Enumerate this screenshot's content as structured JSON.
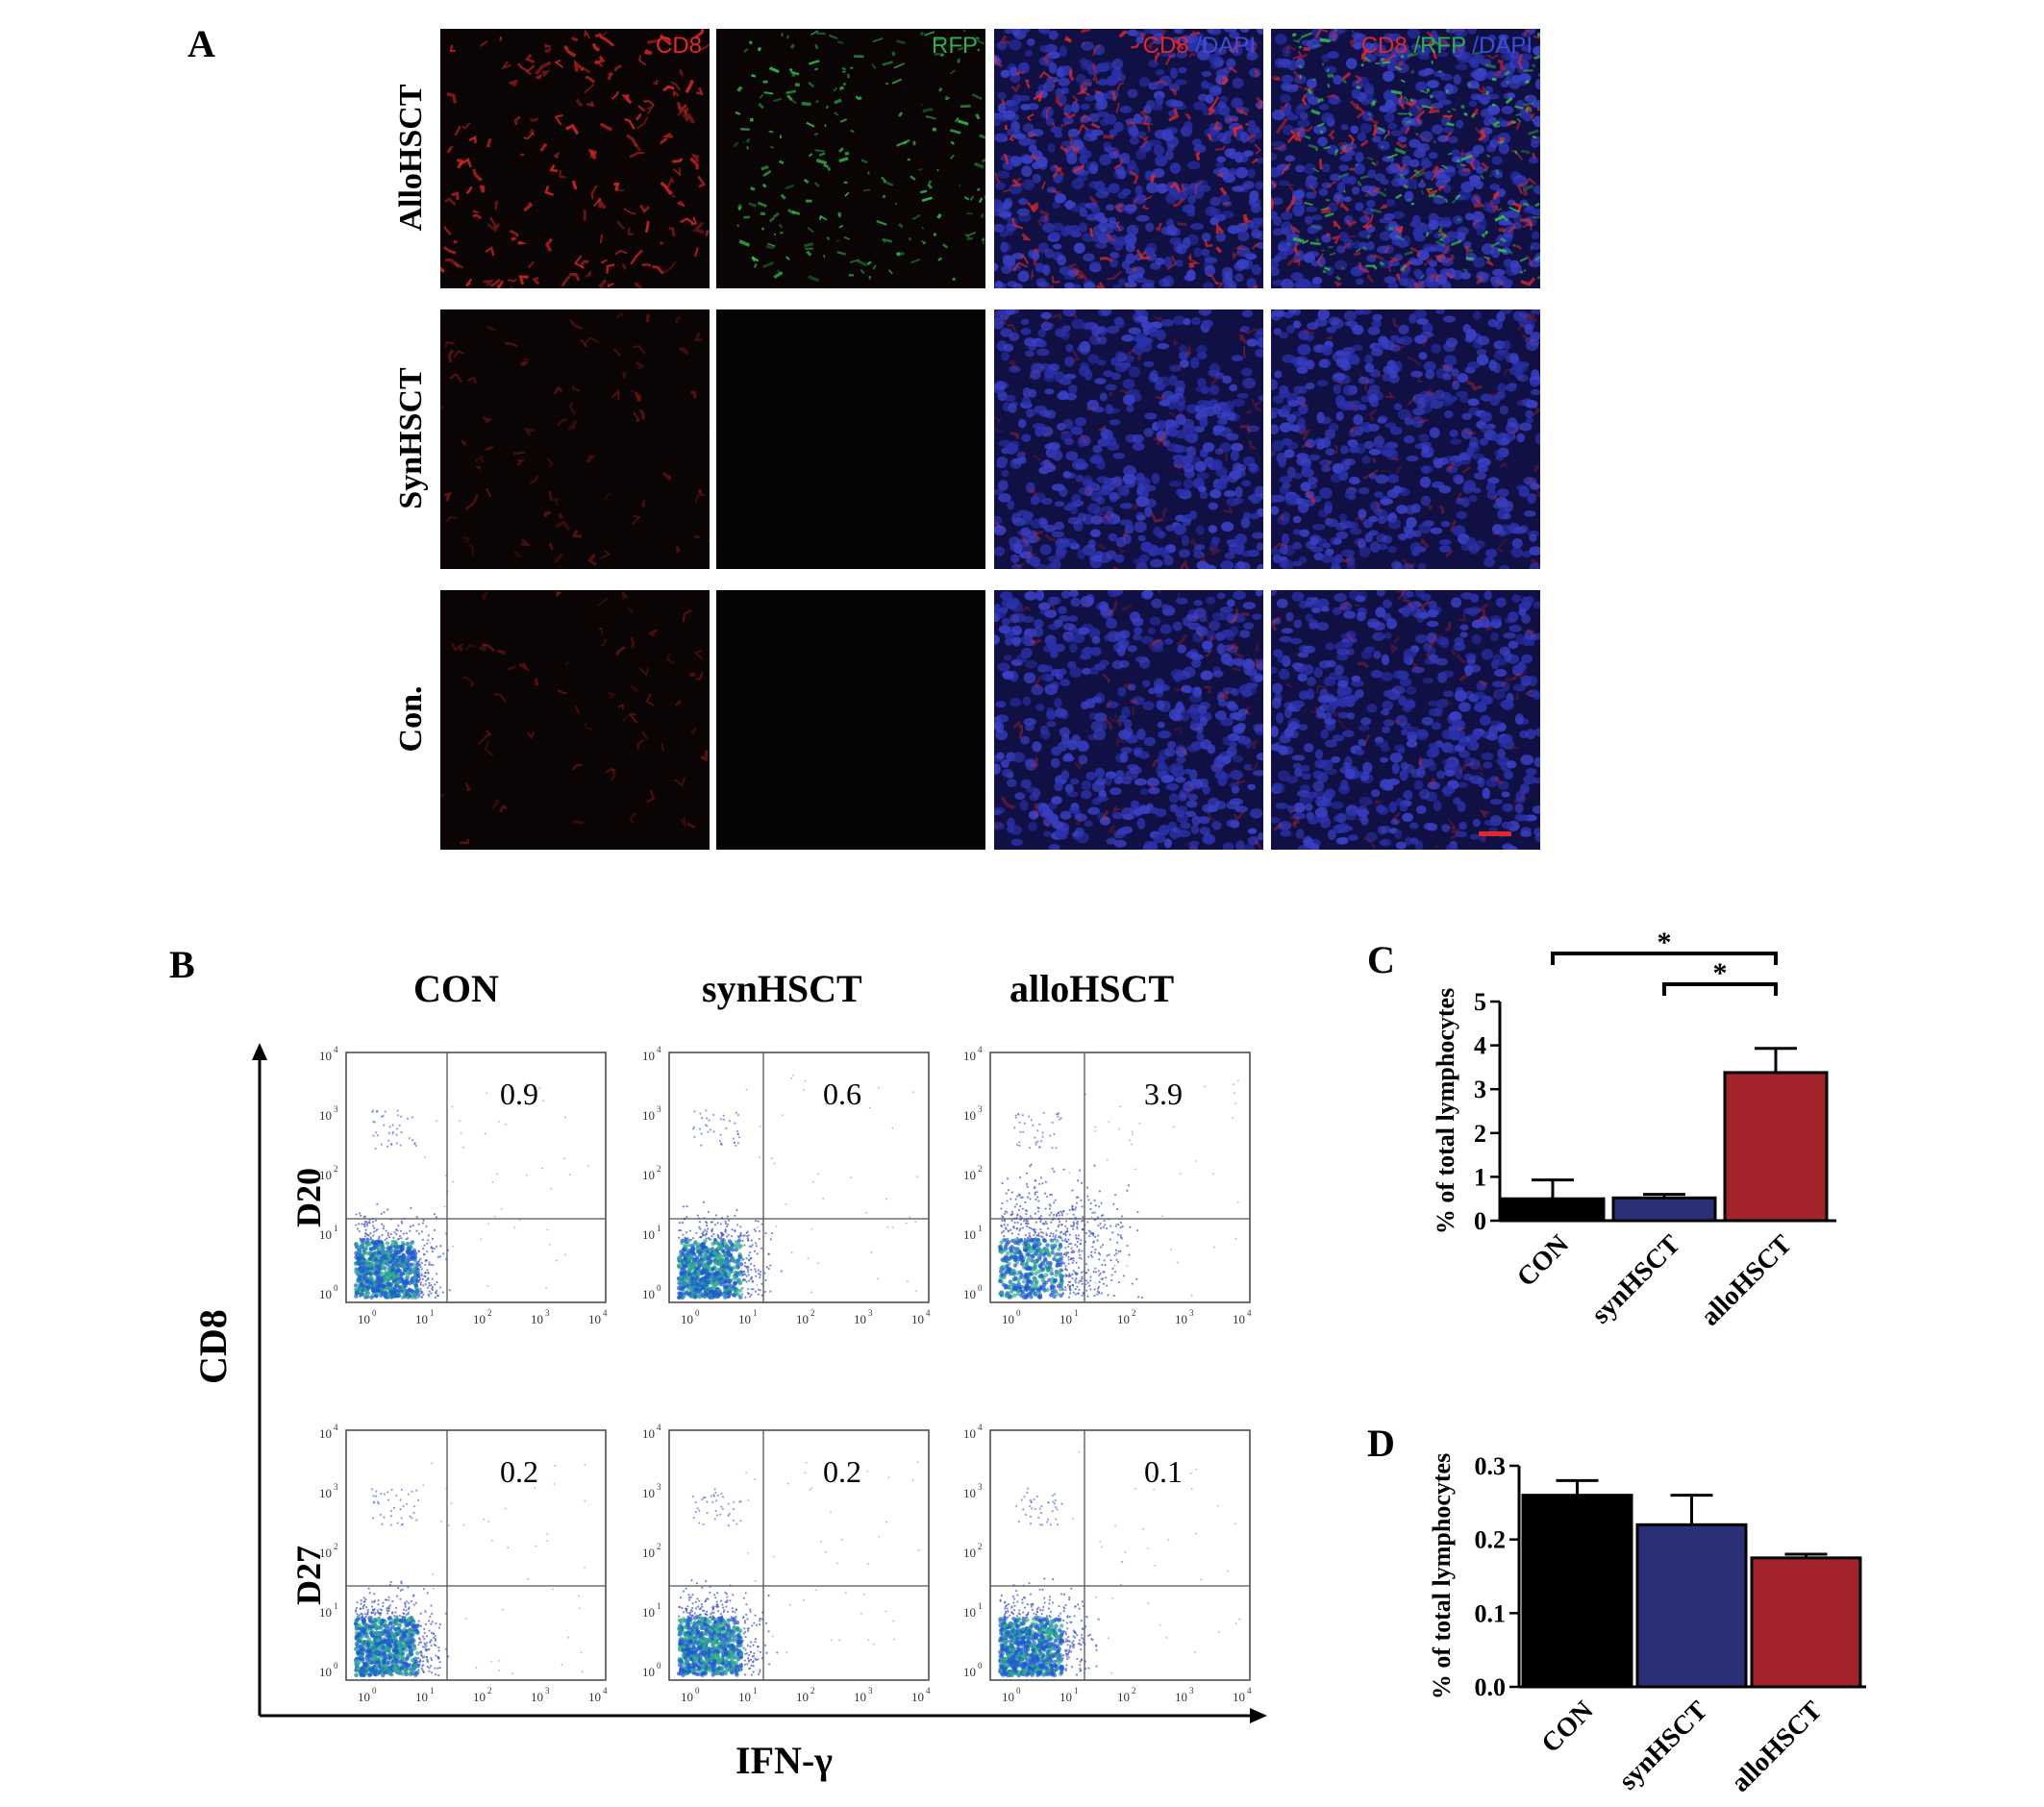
{
  "panels": {
    "A": {
      "letter": "A",
      "rows": [
        "AlloHSCT",
        "SynHSCT",
        "Con."
      ],
      "channels": [
        {
          "id": "cd8",
          "parts": [
            {
              "text": "CD8",
              "color": "#e3262b"
            }
          ]
        },
        {
          "id": "rfp",
          "parts": [
            {
              "text": "RFP",
              "color": "#2fae4a"
            }
          ]
        },
        {
          "id": "cd8dapi",
          "parts": [
            {
              "text": "CD8",
              "color": "#e3262b"
            },
            {
              "text": " /DAPI",
              "color": "#3d4fd8"
            }
          ]
        },
        {
          "id": "merge",
          "parts": [
            {
              "text": "CD8",
              "color": "#e3262b"
            },
            {
              "text": " /RFP",
              "color": "#2fae4a"
            },
            {
              "text": " /DAPI",
              "color": "#3d4fd8"
            }
          ]
        }
      ],
      "scale_bar_color": "#e3262b"
    },
    "B": {
      "letter": "B",
      "columns": [
        "CON",
        "synHSCT",
        "alloHSCT"
      ],
      "days": [
        "D20",
        "D27"
      ],
      "values": [
        [
          "0.9",
          "0.6",
          "3.9"
        ],
        [
          "0.2",
          "0.2",
          "0.1"
        ]
      ],
      "y_axis": "CD8",
      "x_axis": "IFN-γ",
      "tick_base": "10",
      "tick_exponents": [
        "0",
        "1",
        "2",
        "3",
        "4"
      ]
    },
    "C": {
      "letter": "C"
    },
    "D": {
      "letter": "D"
    }
  },
  "chart_data": [
    {
      "panel": "C",
      "type": "bar",
      "categories": [
        "CON",
        "synHSCT",
        "alloHSCT"
      ],
      "values": [
        0.5,
        0.52,
        3.38
      ],
      "errors": [
        0.43,
        0.08,
        0.55
      ],
      "colors": [
        "#000000",
        "#2b2f78",
        "#a3232a"
      ],
      "ylabel": "% of total lymphocytes",
      "ylim": [
        0,
        5
      ],
      "yticks": [
        "0",
        "1",
        "2",
        "3",
        "4",
        "5"
      ],
      "significance": [
        {
          "from": "CON",
          "to": "alloHSCT",
          "label": "*"
        },
        {
          "from": "synHSCT",
          "to": "alloHSCT",
          "label": "*"
        }
      ]
    },
    {
      "panel": "D",
      "type": "bar",
      "categories": [
        "CON",
        "synHSCT",
        "alloHSCT"
      ],
      "values": [
        0.26,
        0.22,
        0.175
      ],
      "errors": [
        0.02,
        0.04,
        0.005
      ],
      "colors": [
        "#000000",
        "#2b2f78",
        "#a3232a"
      ],
      "ylabel": "% of total lymphocytes",
      "ylim": [
        0,
        0.3
      ],
      "yticks": [
        "0.0",
        "0.1",
        "0.2",
        "0.3"
      ]
    }
  ]
}
